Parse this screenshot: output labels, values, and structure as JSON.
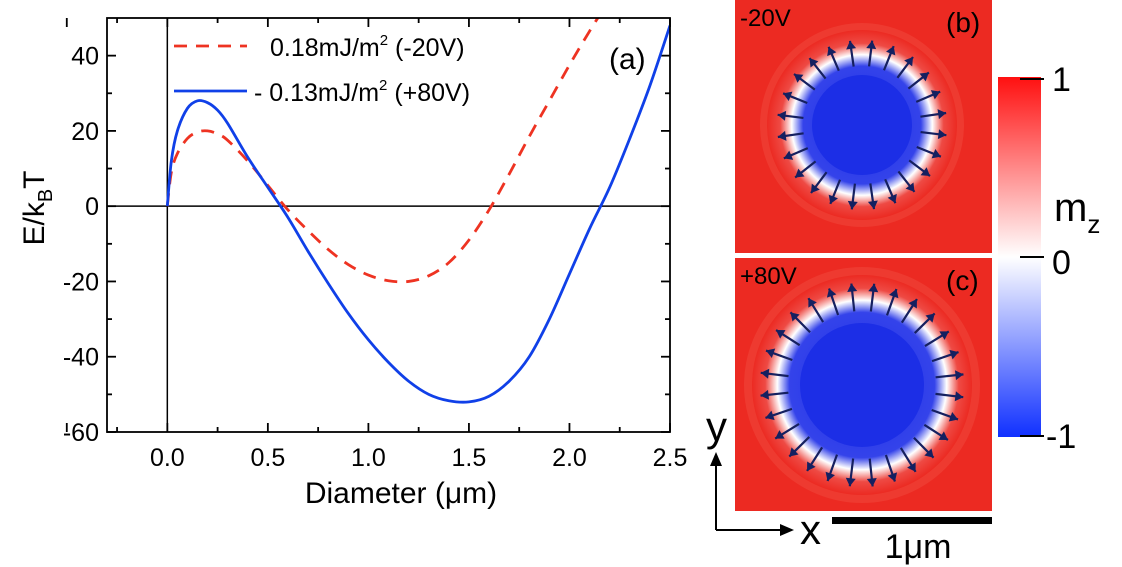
{
  "chart_data": [
    {
      "type": "line",
      "panel_label": "(a)",
      "xlabel": "Diameter (μm)",
      "ylabel": "E/kBT",
      "xlim": [
        -0.3,
        2.5
      ],
      "ylim": [
        -60,
        50
      ],
      "xticks": [
        "0.0",
        "0.5",
        "1.0",
        "1.5",
        "2.0",
        "2.5"
      ],
      "yticks": [
        "-60",
        "-40",
        "-20",
        "0",
        "20",
        "40"
      ],
      "grid": false,
      "legend_position": "top-right",
      "series": [
        {
          "name": "0.18mJ/m2 (-20V)",
          "color": "#ee3322",
          "style": "dashed",
          "x": [
            0,
            0.02,
            0.05,
            0.1,
            0.15,
            0.2,
            0.25,
            0.3,
            0.4,
            0.5,
            0.6,
            0.7,
            0.8,
            0.9,
            1.0,
            1.1,
            1.2,
            1.3,
            1.4,
            1.5,
            1.6,
            1.7,
            1.8,
            1.9,
            2.0,
            2.1,
            2.2
          ],
          "y": [
            0,
            9,
            14,
            18,
            19.7,
            20,
            19.2,
            17.5,
            12,
            5.5,
            -1,
            -6.5,
            -11.5,
            -15.5,
            -18.3,
            -19.8,
            -20,
            -18.5,
            -15,
            -9,
            -1,
            8.5,
            18.5,
            28,
            37.5,
            46.5,
            55
          ]
        },
        {
          "name": "- 0.13mJ/m2 (+80V)",
          "color": "#1040e8",
          "style": "solid",
          "x": [
            0,
            0.02,
            0.05,
            0.1,
            0.15,
            0.2,
            0.25,
            0.3,
            0.4,
            0.5,
            0.6,
            0.7,
            0.8,
            0.9,
            1.0,
            1.1,
            1.2,
            1.3,
            1.4,
            1.5,
            1.6,
            1.7,
            1.8,
            1.9,
            2.0,
            2.1,
            2.2,
            2.3,
            2.4,
            2.5
          ],
          "y": [
            0,
            12,
            20,
            26,
            28,
            27.5,
            25.5,
            22,
            13,
            5,
            -3,
            -12,
            -20.5,
            -28.5,
            -35.5,
            -41.5,
            -46.5,
            -50,
            -51.7,
            -52,
            -50.5,
            -46.5,
            -40,
            -30,
            -18,
            -6,
            5,
            18,
            32,
            48
          ]
        }
      ]
    },
    {
      "type": "heatmap",
      "panel_label": "(b)",
      "annotation": "-20V",
      "colors": {
        "background": "#ec2a22",
        "core": "#1c2ee6",
        "ring": "#ffffff",
        "arrow": "#152060"
      }
    },
    {
      "type": "heatmap",
      "panel_label": "(c)",
      "annotation": "+80V",
      "colors": {
        "background": "#ec2a22",
        "core": "#1c2ee6",
        "ring": "#ffffff",
        "arrow": "#152060"
      }
    }
  ],
  "colorbar": {
    "label": "mz",
    "ticks": [
      "1",
      "0",
      "-1"
    ],
    "top_color": "#ff1010",
    "mid_color": "#ffffff",
    "bottom_color": "#1030ff"
  },
  "axes_indicator": {
    "x_label": "x",
    "y_label": "y"
  },
  "scalebar": {
    "label": "1μm"
  }
}
